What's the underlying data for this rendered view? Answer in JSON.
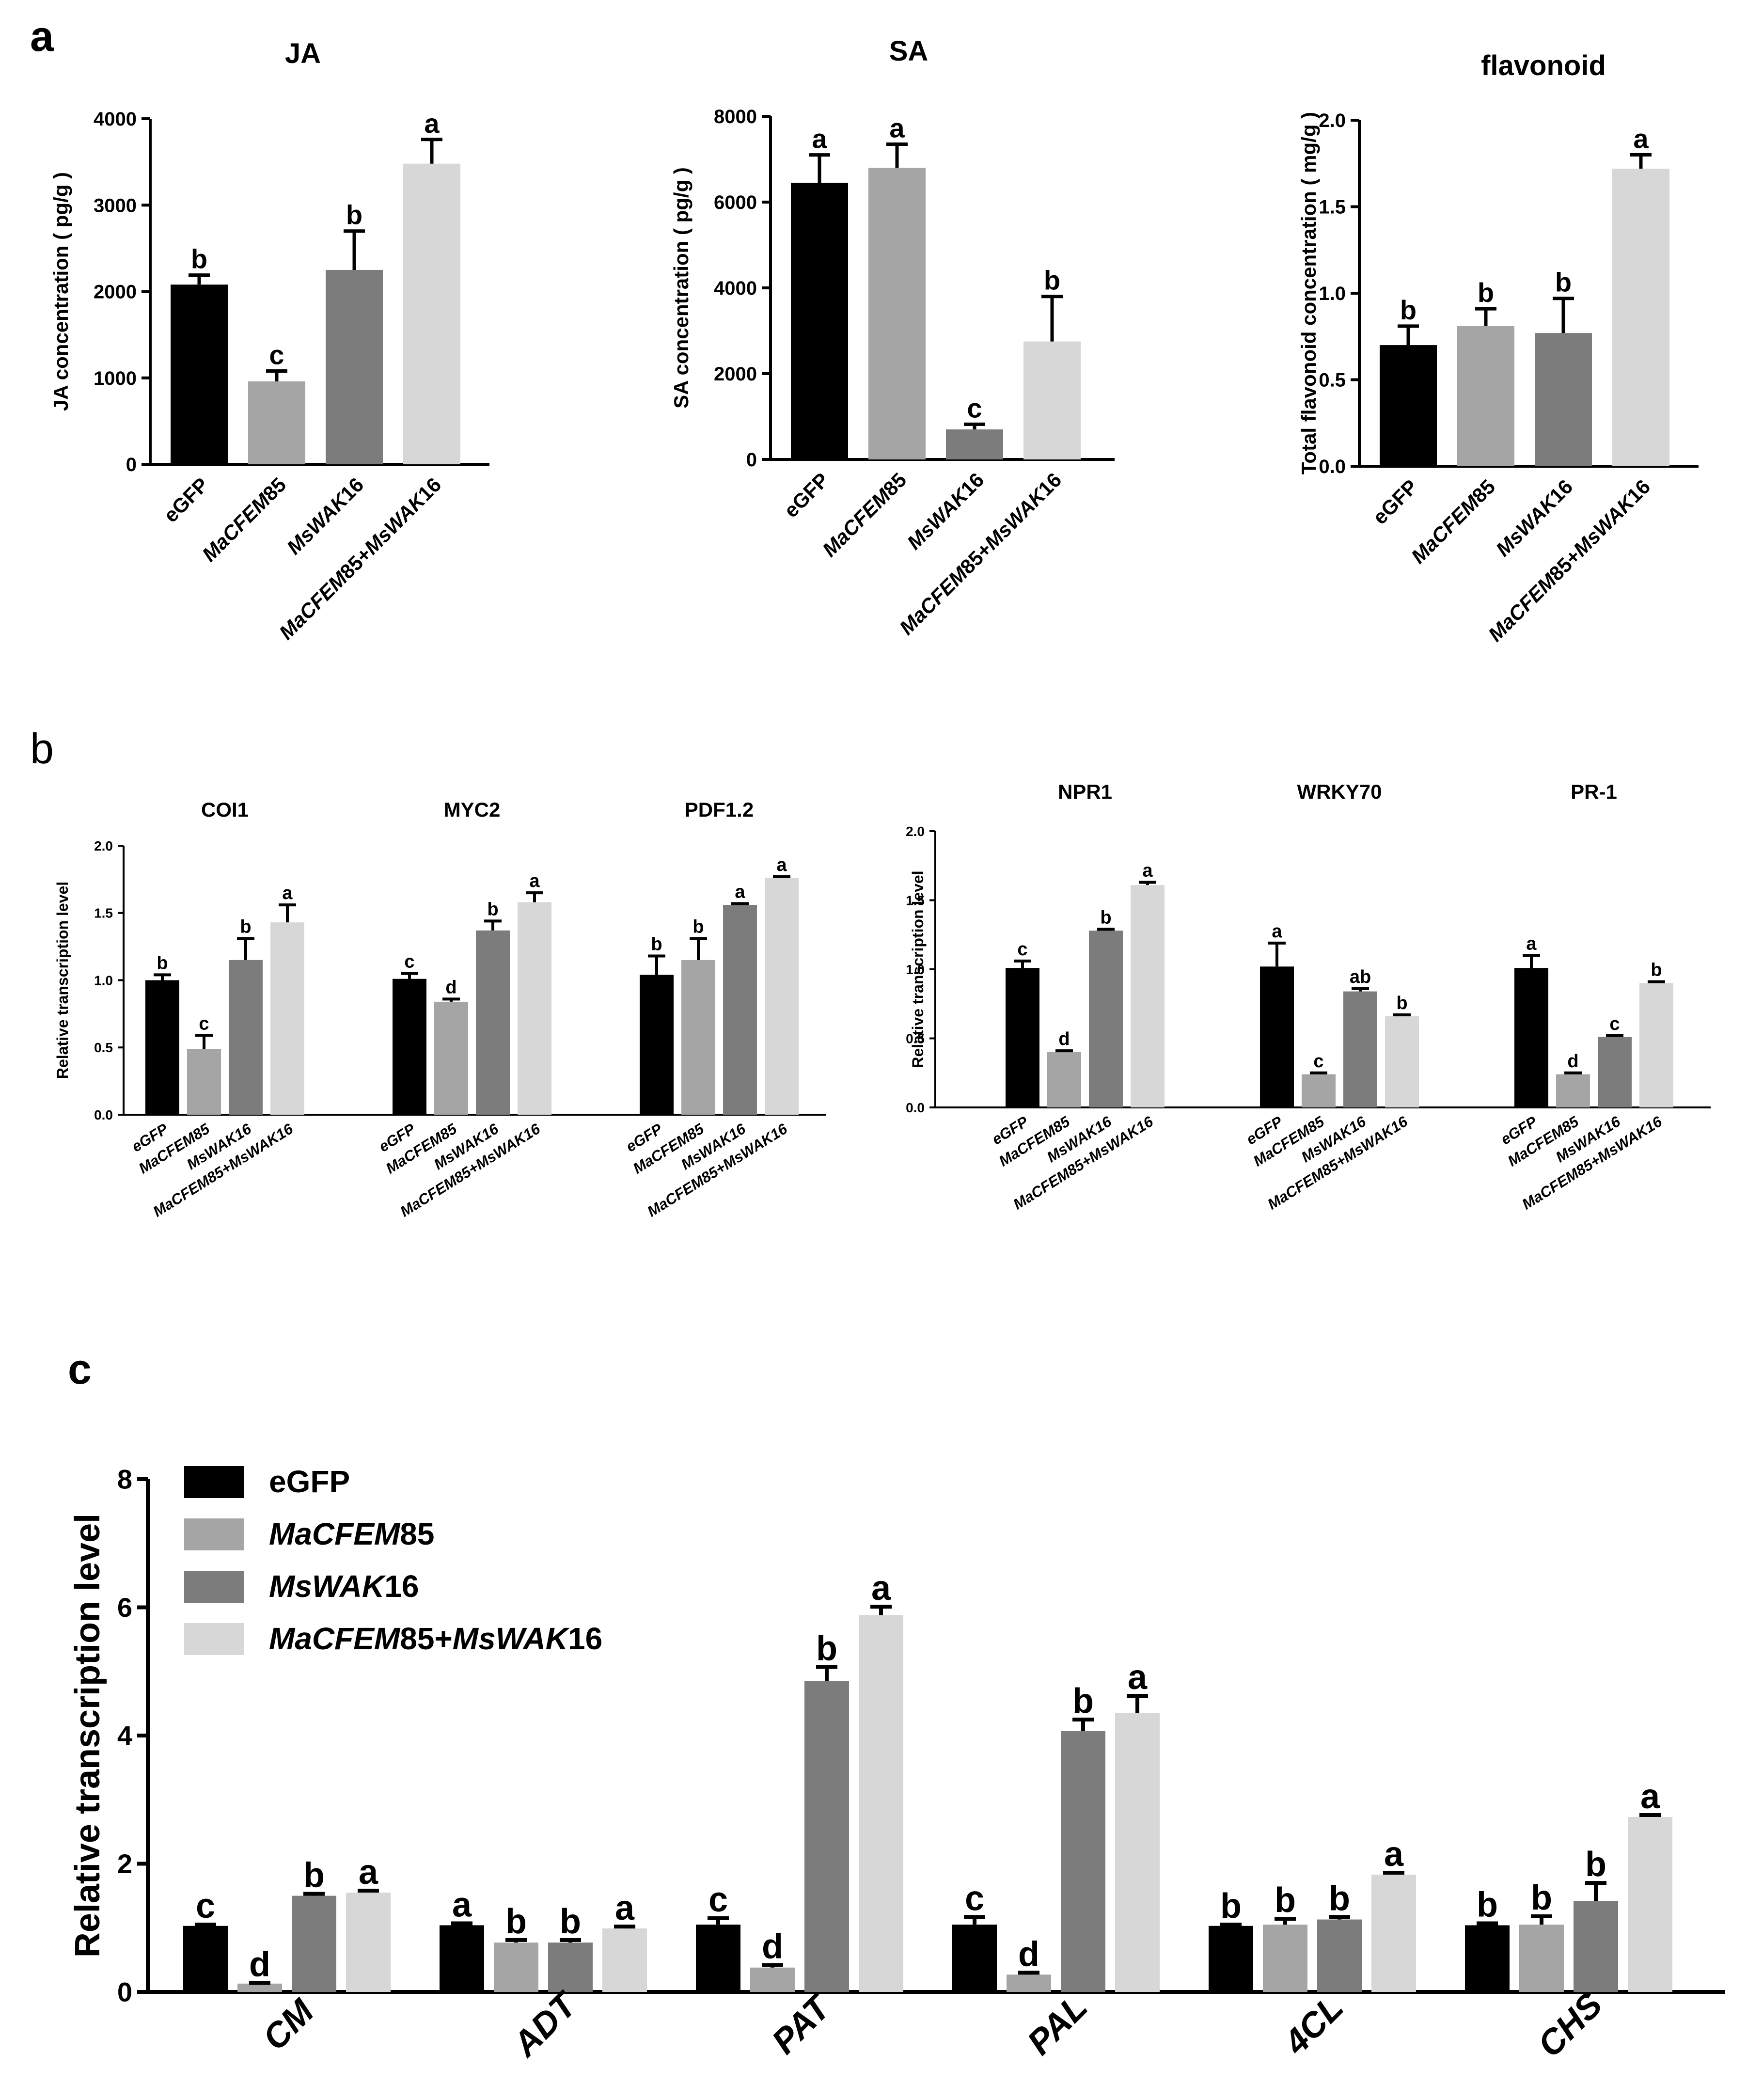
{
  "figure": {
    "panel_labels": [
      "a",
      "b",
      "c"
    ]
  },
  "colors": {
    "eGFP": "#000000",
    "MaCFEM85": "#a5a5a5",
    "MsWAK16": "#7c7c7c",
    "combo": "#d7d7d7"
  },
  "chart_data": [
    {
      "id": "JA",
      "panel": "a",
      "type": "bar",
      "title": "JA",
      "ylabel": "JA concentration ( pg/g )",
      "ylim": [
        0,
        4000
      ],
      "yticks": [
        "0",
        "1000",
        "2000",
        "3000",
        "4000"
      ],
      "categories": [
        "eGFP",
        "MaCFEM85",
        "MsWAK16",
        "MaCFEM85+MsWAK16"
      ],
      "values": [
        2080,
        960,
        2250,
        3480
      ],
      "errors": [
        110,
        120,
        450,
        280
      ],
      "letters": [
        "b",
        "c",
        "b",
        "a"
      ]
    },
    {
      "id": "SA",
      "panel": "a",
      "type": "bar",
      "title": "SA",
      "ylabel": "SA concentration ( pg/g )",
      "ylim": [
        0,
        8000
      ],
      "yticks": [
        "0",
        "2000",
        "4000",
        "6000",
        "8000"
      ],
      "categories": [
        "eGFP",
        "MaCFEM85",
        "MsWAK16",
        "MaCFEM85+MsWAK16"
      ],
      "values": [
        6450,
        6800,
        700,
        2750
      ],
      "errors": [
        650,
        550,
        120,
        1050
      ],
      "letters": [
        "a",
        "a",
        "c",
        "b"
      ]
    },
    {
      "id": "flavonoid",
      "panel": "a",
      "type": "bar",
      "title": "flavonoid",
      "ylabel": "Total flavonoid concentration ( mg/g )",
      "ylim": [
        0,
        2.0
      ],
      "yticks": [
        "0.0",
        "0.5",
        "1.0",
        "1.5",
        "2.0"
      ],
      "categories": [
        "eGFP",
        "MaCFEM85",
        "MsWAK16",
        "MaCFEM85+MsWAK16"
      ],
      "values": [
        0.7,
        0.81,
        0.77,
        1.72
      ],
      "errors": [
        0.11,
        0.1,
        0.2,
        0.08
      ],
      "letters": [
        "b",
        "b",
        "b",
        "a"
      ]
    },
    {
      "id": "JA-genes",
      "panel": "b",
      "type": "bar",
      "ylabel": "Relative transcription level",
      "ylim": [
        0,
        2.0
      ],
      "yticks": [
        "0.0",
        "0.5",
        "1.0",
        "1.5",
        "2.0"
      ],
      "categories": [
        "eGFP",
        "MaCFEM85",
        "MsWAK16",
        "MaCFEM85+MsWAK16"
      ],
      "groups": [
        {
          "name": "COI1",
          "values": [
            1.0,
            0.49,
            1.15,
            1.43
          ],
          "errors": [
            0.04,
            0.1,
            0.16,
            0.13
          ],
          "letters": [
            "b",
            "c",
            "b",
            "a"
          ]
        },
        {
          "name": "MYC2",
          "values": [
            1.01,
            0.84,
            1.37,
            1.58
          ],
          "errors": [
            0.04,
            0.02,
            0.07,
            0.07
          ],
          "letters": [
            "c",
            "d",
            "b",
            "a"
          ]
        },
        {
          "name": "PDF1.2",
          "values": [
            1.04,
            1.15,
            1.56,
            1.76
          ],
          "errors": [
            0.14,
            0.16,
            0.01,
            0.01
          ],
          "letters": [
            "b",
            "b",
            "a",
            "a"
          ]
        }
      ]
    },
    {
      "id": "SA-genes",
      "panel": "b",
      "type": "bar",
      "ylabel": "Relative transcription level",
      "ylim": [
        0,
        2.0
      ],
      "yticks": [
        "0.0",
        "0.5",
        "1.0",
        "1.5",
        "2.0"
      ],
      "categories": [
        "eGFP",
        "MaCFEM85",
        "MsWAK16",
        "MaCFEM85+MsWAK16"
      ],
      "groups": [
        {
          "name": "NPR1",
          "values": [
            1.01,
            0.4,
            1.28,
            1.61
          ],
          "errors": [
            0.05,
            0.01,
            0.01,
            0.02
          ],
          "letters": [
            "c",
            "d",
            "b",
            "a"
          ]
        },
        {
          "name": "WRKY70",
          "values": [
            1.02,
            0.24,
            0.84,
            0.66
          ],
          "errors": [
            0.17,
            0.01,
            0.02,
            0.01
          ],
          "letters": [
            "a",
            "c",
            "ab",
            "b"
          ]
        },
        {
          "name": "PR-1",
          "values": [
            1.01,
            0.24,
            0.51,
            0.9
          ],
          "errors": [
            0.09,
            0.01,
            0.01,
            0.01
          ],
          "letters": [
            "a",
            "d",
            "c",
            "b"
          ]
        }
      ]
    },
    {
      "id": "phenylpropanoid-genes",
      "panel": "c",
      "type": "bar",
      "ylabel": "Relative transcription level",
      "ylim": [
        0,
        8
      ],
      "yticks": [
        "0",
        "2",
        "4",
        "6",
        "8"
      ],
      "categories": [
        "CM",
        "ADT",
        "PAT",
        "PAL",
        "4CL",
        "CHS"
      ],
      "legend": {
        "position": "top-left",
        "entries": [
          "eGFP",
          "MaCFEM85",
          "MsWAK16",
          "MaCFEM85+MsWAK16"
        ]
      },
      "series": [
        {
          "name": "eGFP",
          "values": [
            1.03,
            1.04,
            1.05,
            1.05,
            1.03,
            1.04
          ],
          "errors": [
            0.02,
            0.03,
            0.1,
            0.12,
            0.02,
            0.03
          ],
          "letters": [
            "c",
            "a",
            "c",
            "c",
            "b",
            "b"
          ]
        },
        {
          "name": "MaCFEM85",
          "values": [
            0.13,
            0.77,
            0.38,
            0.27,
            1.05,
            1.05
          ],
          "errors": [
            0.01,
            0.04,
            0.04,
            0.03,
            0.09,
            0.13
          ],
          "letters": [
            "d",
            "b",
            "d",
            "d",
            "b",
            "b"
          ]
        },
        {
          "name": "MsWAK16",
          "values": [
            1.5,
            0.77,
            4.85,
            4.07,
            1.13,
            1.42
          ],
          "errors": [
            0.03,
            0.04,
            0.22,
            0.18,
            0.04,
            0.28
          ],
          "letters": [
            "b",
            "b",
            "b",
            "b",
            "b",
            "b"
          ]
        },
        {
          "name": "MaCFEM85+MsWAK16",
          "values": [
            1.55,
            0.99,
            5.88,
            4.35,
            1.83,
            2.73
          ],
          "errors": [
            0.03,
            0.03,
            0.13,
            0.27,
            0.03,
            0.03
          ],
          "letters": [
            "a",
            "a",
            "a",
            "a",
            "a",
            "a"
          ]
        }
      ]
    }
  ]
}
